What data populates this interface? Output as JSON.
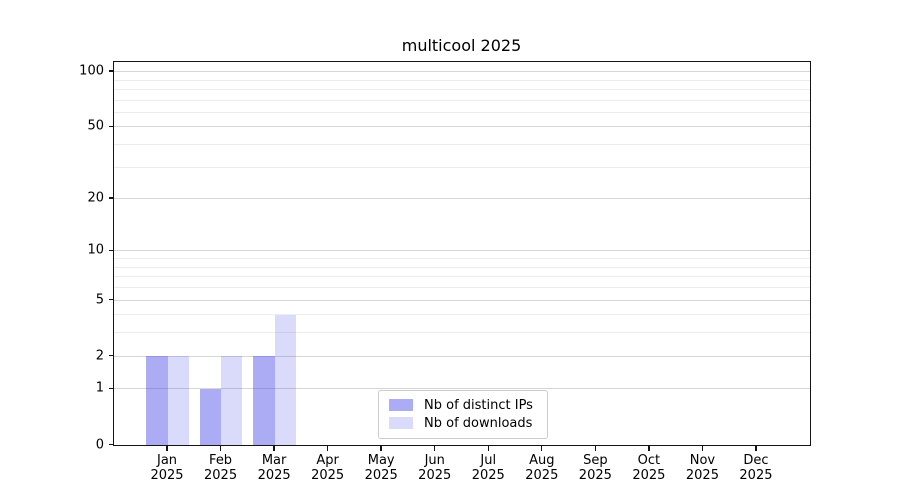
{
  "chart_data": {
    "type": "bar",
    "title": "multicool 2025",
    "categories": [
      "Jan",
      "Feb",
      "Mar",
      "Apr",
      "May",
      "Jun",
      "Jul",
      "Aug",
      "Sep",
      "Oct",
      "Nov",
      "Dec"
    ],
    "category_sublabel": "2025",
    "series": [
      {
        "name": "Nb of distinct IPs",
        "base_color": "#4646e6",
        "alpha": 0.45,
        "values": [
          2,
          1,
          2,
          0,
          0,
          0,
          0,
          0,
          0,
          0,
          0,
          0
        ]
      },
      {
        "name": "Nb of downloads",
        "base_color": "#4646e6",
        "alpha": 0.2,
        "values": [
          2,
          2,
          4,
          0,
          0,
          0,
          0,
          0,
          0,
          0,
          0,
          0
        ]
      }
    ],
    "y_axis": {
      "scale": "log1p",
      "major_ticks": [
        0,
        1,
        2,
        5,
        10,
        20,
        50,
        100
      ],
      "minor_ticks": [
        3,
        4,
        6,
        7,
        8,
        9,
        30,
        40,
        60,
        70,
        80,
        90
      ],
      "ylim": [
        0,
        112
      ]
    },
    "x_axis": {
      "label": ""
    },
    "legend": {
      "position": "lower center"
    },
    "grid": "on",
    "colors": {
      "axis": "#141414",
      "grid_major": "#d6d6d6",
      "grid_minor": "#ededed",
      "background": "#ffffff"
    }
  }
}
